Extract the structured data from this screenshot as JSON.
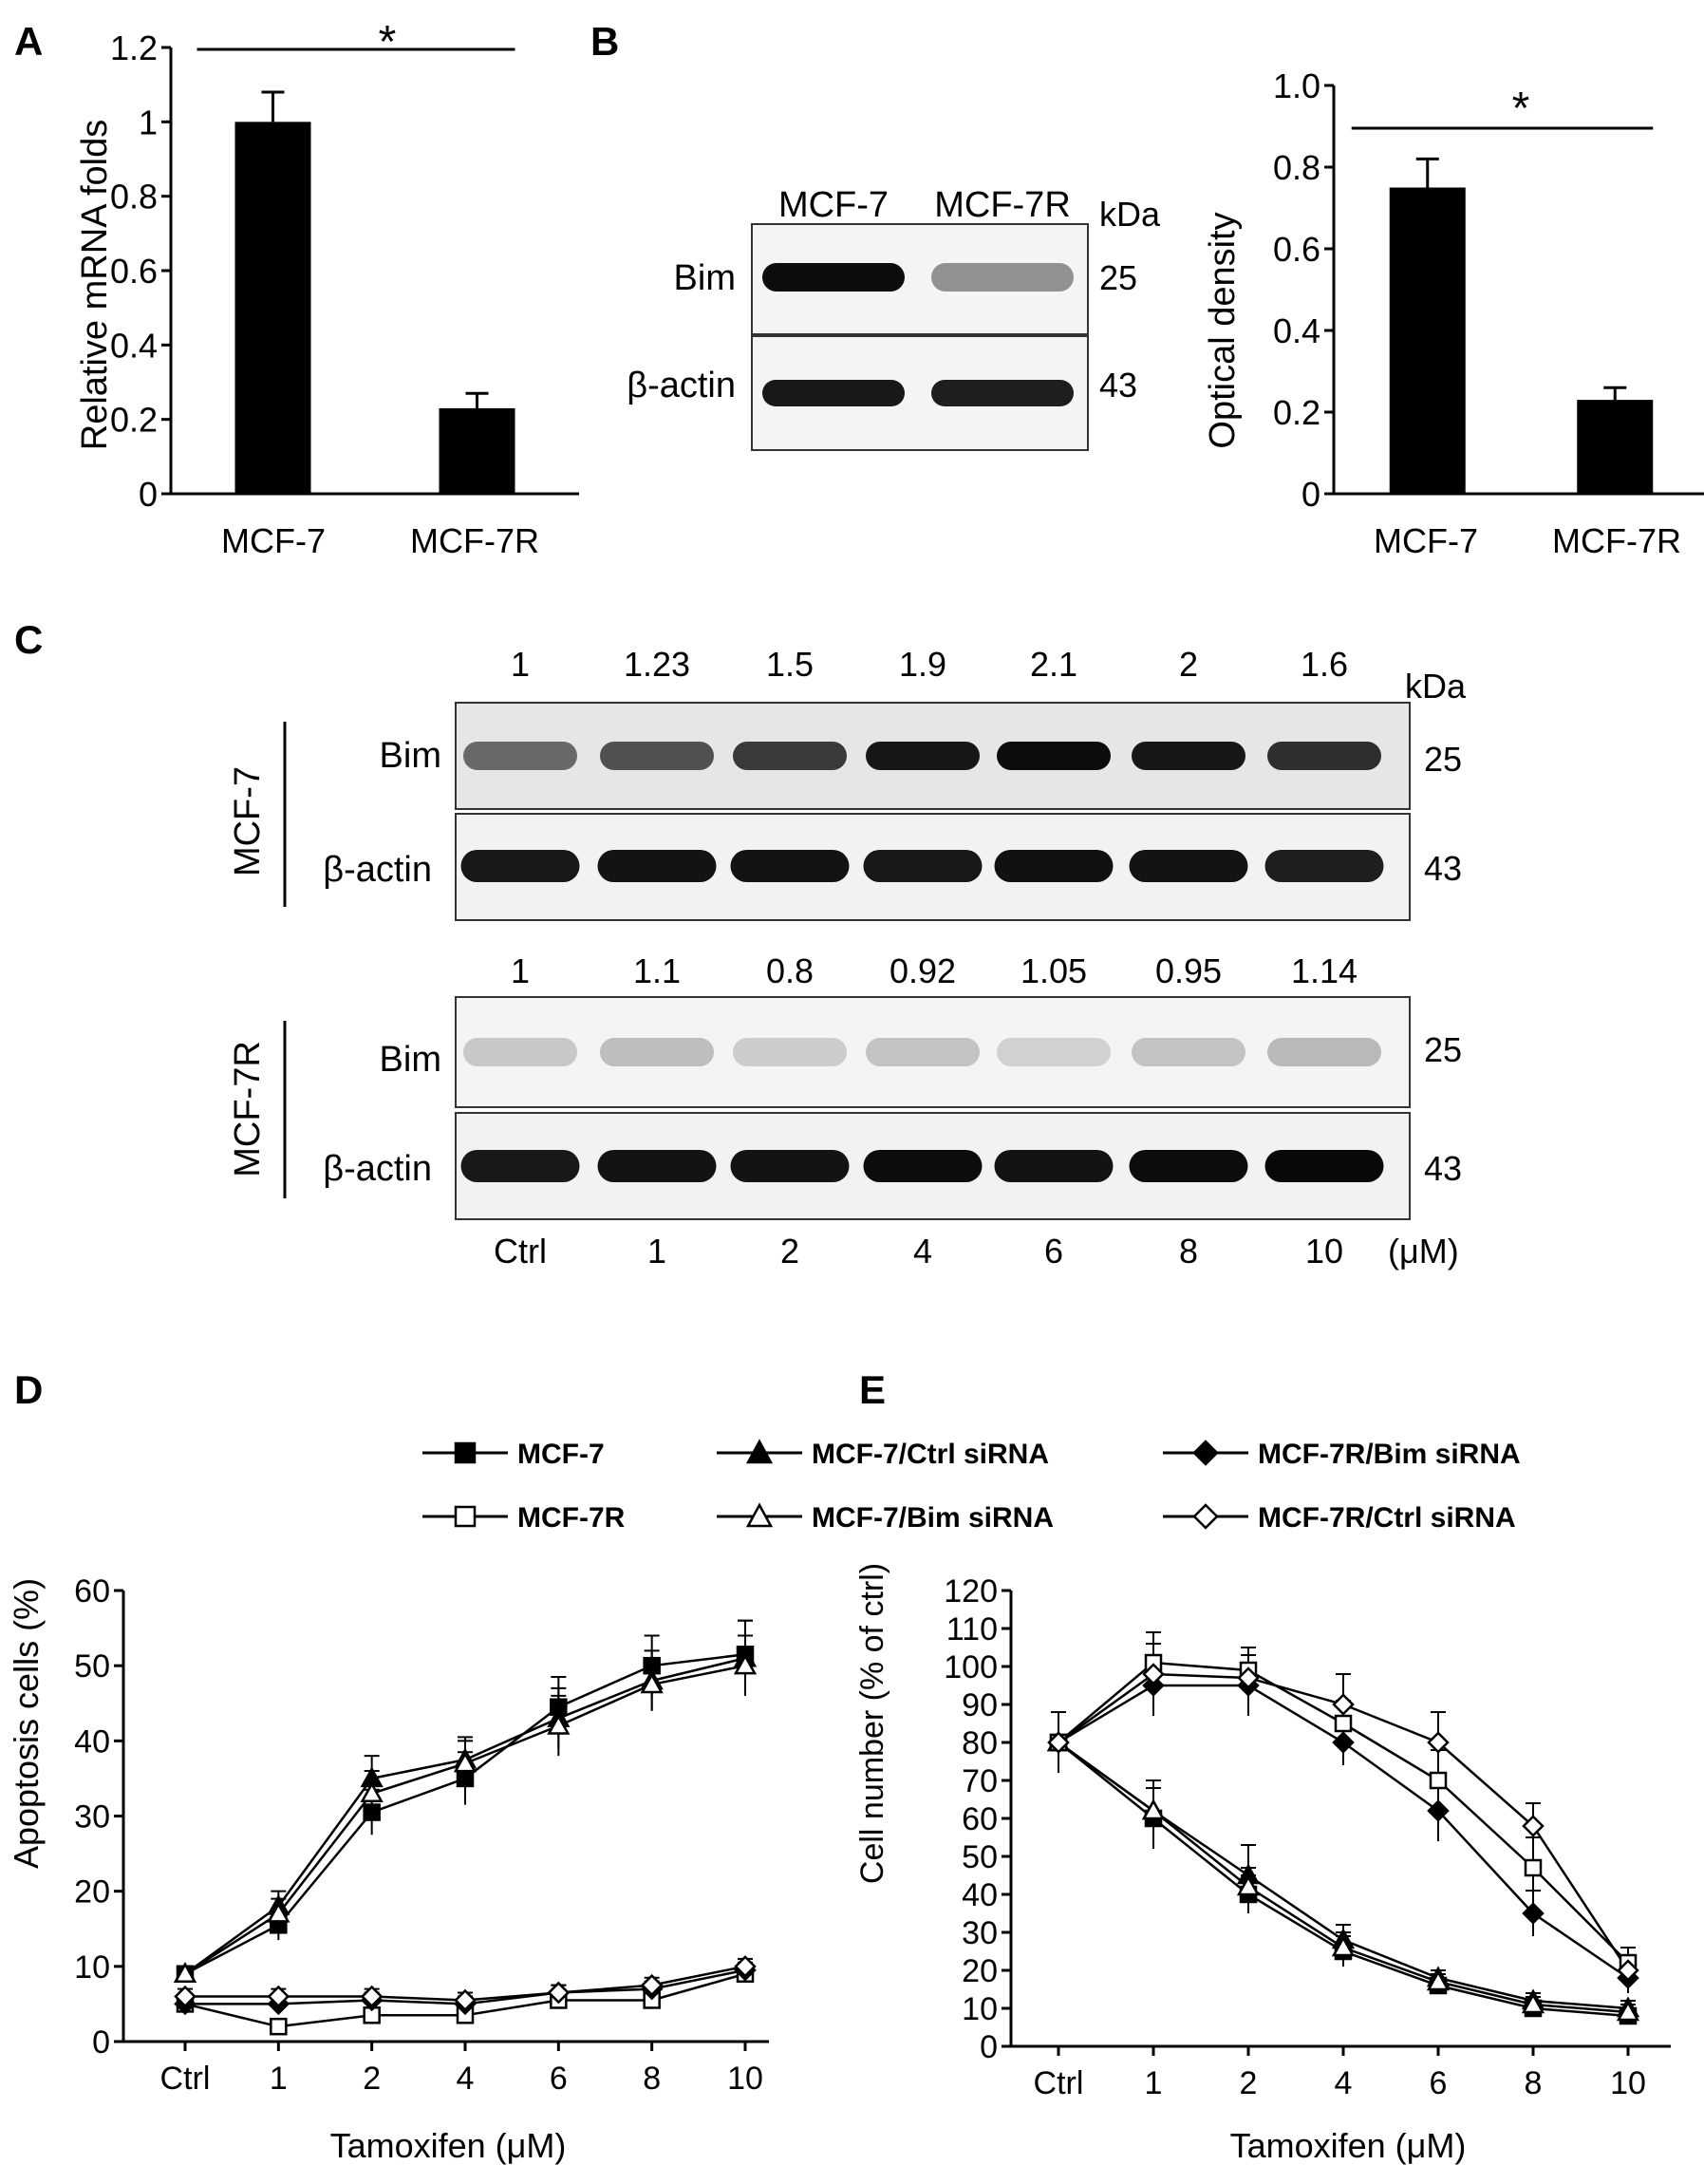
{
  "panel_letters": [
    "A",
    "B",
    "C",
    "D",
    "E"
  ],
  "chart_data": [
    {
      "panel": "A",
      "type": "bar",
      "categories": [
        "MCF-7",
        "MCF-7R"
      ],
      "values": [
        1.0,
        0.23
      ],
      "errors": [
        0.08,
        0.04
      ],
      "ylabel": "Relative mRNA folds",
      "ylim": [
        0,
        1.2
      ],
      "yticks": [
        "0",
        "0.2",
        "0.4",
        "0.6",
        "0.8",
        "1",
        "1.2"
      ],
      "significance": "*"
    },
    {
      "panel": "B",
      "type": "bar",
      "categories": [
        "MCF-7",
        "MCF-7R"
      ],
      "values": [
        0.75,
        0.23
      ],
      "errors": [
        0.07,
        0.03
      ],
      "ylabel": "Optical density",
      "ylim": [
        0,
        1.0
      ],
      "yticks": [
        "0",
        "0.2",
        "0.4",
        "0.6",
        "0.8",
        "1.0"
      ],
      "significance": "*"
    },
    {
      "panel": "D",
      "type": "line",
      "x": [
        "Ctrl",
        "1",
        "2",
        "4",
        "6",
        "8",
        "10"
      ],
      "xlabel": "Tamoxifen (μM)",
      "ylabel": "Apoptosis cells (%)",
      "ylim": [
        0,
        60
      ],
      "yticks": [
        "0",
        "10",
        "20",
        "30",
        "40",
        "50",
        "60"
      ],
      "series": [
        {
          "name": "MCF-7",
          "marker": "square-filled",
          "values": [
            9,
            15.5,
            30.5,
            35,
            44.5,
            50,
            51.5
          ],
          "errors": [
            1,
            2,
            3,
            3.5,
            4,
            4,
            4.5
          ]
        },
        {
          "name": "MCF-7/Ctrl siRNA",
          "marker": "triangle-filled",
          "values": [
            9,
            18,
            35,
            37.5,
            43,
            48,
            51
          ],
          "errors": [
            1,
            2,
            3,
            3,
            4,
            4,
            5
          ]
        },
        {
          "name": "MCF-7/Bim siRNA",
          "marker": "triangle-open",
          "values": [
            9,
            17,
            33,
            37,
            42,
            47.5,
            50
          ],
          "errors": [
            1,
            2,
            3,
            3,
            4,
            3.5,
            4
          ]
        },
        {
          "name": "MCF-7R",
          "marker": "square-open",
          "values": [
            5,
            2,
            3.5,
            3.5,
            5.5,
            5.5,
            9
          ],
          "errors": [
            1,
            1,
            1,
            1,
            1,
            1,
            1
          ]
        },
        {
          "name": "MCF-7R/Bim siRNA",
          "marker": "diamond-filled",
          "values": [
            5,
            5,
            5.5,
            5,
            6.5,
            7,
            9.5
          ],
          "errors": [
            1,
            1,
            1,
            1,
            1,
            1,
            1
          ]
        },
        {
          "name": "MCF-7R/Ctrl siRNA",
          "marker": "diamond-open",
          "values": [
            6,
            6,
            6,
            5.5,
            6.5,
            7.5,
            10
          ],
          "errors": [
            1,
            1,
            1,
            1,
            1,
            1,
            1
          ]
        }
      ]
    },
    {
      "panel": "E",
      "type": "line",
      "x": [
        "Ctrl",
        "1",
        "2",
        "4",
        "6",
        "8",
        "10"
      ],
      "xlabel": "Tamoxifen (μM)",
      "ylabel": "Cell number (% of ctrl)",
      "ylim": [
        0,
        120
      ],
      "yticks": [
        "0",
        "10",
        "20",
        "30",
        "40",
        "50",
        "60",
        "70",
        "80",
        "90",
        "100",
        "110",
        "120"
      ],
      "series": [
        {
          "name": "MCF-7",
          "marker": "square-filled",
          "values": [
            80,
            60,
            40,
            25,
            16,
            10,
            8
          ],
          "errors": [
            8,
            8,
            5,
            4,
            2,
            2,
            2
          ]
        },
        {
          "name": "MCF-7/Ctrl siRNA",
          "marker": "triangle-filled",
          "values": [
            80,
            62,
            45,
            28,
            18,
            12,
            10
          ],
          "errors": [
            8,
            8,
            8,
            4,
            2,
            2,
            2
          ]
        },
        {
          "name": "MCF-7/Bim siRNA",
          "marker": "triangle-open",
          "values": [
            80,
            62,
            42,
            26,
            17,
            11,
            9
          ],
          "errors": [
            8,
            6,
            5,
            4,
            2,
            2,
            2
          ]
        },
        {
          "name": "MCF-7R",
          "marker": "square-open",
          "values": [
            80,
            101,
            99,
            85,
            70,
            47,
            22
          ],
          "errors": [
            8,
            8,
            6,
            6,
            8,
            8,
            4
          ]
        },
        {
          "name": "MCF-7R/Bim siRNA",
          "marker": "diamond-filled",
          "values": [
            80,
            95,
            95,
            80,
            62,
            35,
            18
          ],
          "errors": [
            8,
            8,
            8,
            6,
            8,
            6,
            4
          ]
        },
        {
          "name": "MCF-7R/Ctrl siRNA",
          "marker": "diamond-open",
          "values": [
            80,
            98,
            97,
            90,
            80,
            58,
            20
          ],
          "errors": [
            8,
            8,
            8,
            8,
            8,
            6,
            4
          ]
        }
      ]
    }
  ],
  "blot_b": {
    "lanes": [
      "MCF-7",
      "MCF-7R"
    ],
    "unit": "kDa",
    "rows": [
      {
        "label": "Bim",
        "kda": "25",
        "intensity": [
          0.95,
          0.4
        ]
      },
      {
        "label": "β-actin",
        "kda": "43",
        "intensity": [
          0.9,
          0.88
        ]
      }
    ]
  },
  "blot_c": {
    "unit": "kDa",
    "concentration_unit": "(μM)",
    "lanes": [
      "Ctrl",
      "1",
      "2",
      "4",
      "6",
      "8",
      "10"
    ],
    "groups": [
      {
        "name": "MCF-7",
        "fold_values": [
          "1",
          "1.23",
          "1.5",
          "1.9",
          "2.1",
          "2",
          "1.6"
        ],
        "bim_intensity": [
          0.55,
          0.65,
          0.75,
          0.9,
          0.95,
          0.9,
          0.8
        ],
        "actin_intensity": [
          0.9,
          0.92,
          0.92,
          0.9,
          0.93,
          0.92,
          0.88
        ],
        "rows": [
          {
            "label": "Bim",
            "kda": "25"
          },
          {
            "label": "β-actin",
            "kda": "43"
          }
        ]
      },
      {
        "name": "MCF-7R",
        "fold_values": [
          "1",
          "1.1",
          "0.8",
          "0.92",
          "1.05",
          "0.95",
          "1.14"
        ],
        "bim_intensity": [
          0.18,
          0.22,
          0.16,
          0.2,
          0.14,
          0.2,
          0.24
        ],
        "actin_intensity": [
          0.9,
          0.92,
          0.92,
          0.95,
          0.92,
          0.95,
          0.97
        ],
        "rows": [
          {
            "label": "Bim",
            "kda": "25"
          },
          {
            "label": "β-actin",
            "kda": "43"
          }
        ]
      }
    ]
  },
  "legend": [
    {
      "name": "MCF-7",
      "marker": "square-filled"
    },
    {
      "name": "MCF-7/Ctrl siRNA",
      "marker": "triangle-filled"
    },
    {
      "name": "MCF-7R/Bim siRNA",
      "marker": "diamond-filled"
    },
    {
      "name": "MCF-7R",
      "marker": "square-open"
    },
    {
      "name": "MCF-7/Bim siRNA",
      "marker": "triangle-open"
    },
    {
      "name": "MCF-7R/Ctrl siRNA",
      "marker": "diamond-open"
    }
  ]
}
